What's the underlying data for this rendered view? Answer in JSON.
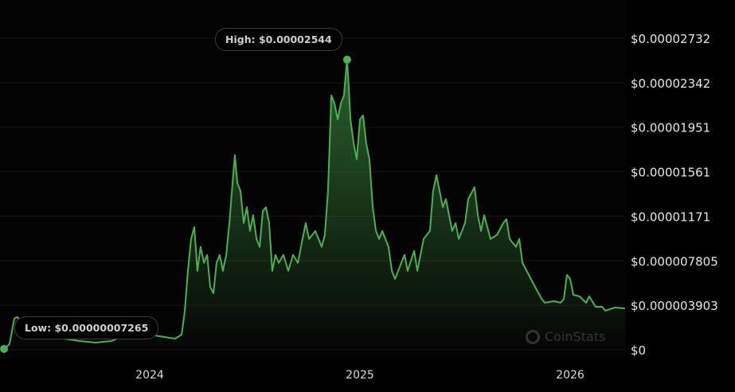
{
  "chart_data": {
    "type": "area",
    "title": "",
    "xlabel": "",
    "ylabel": "",
    "x_ticks": [
      "2024",
      "2025",
      "2026"
    ],
    "y_ticks": [
      "$0",
      "$0.000003903",
      "$0.000007805",
      "$0.00001171",
      "$0.00001561",
      "$0.00001951",
      "$0.00002342",
      "$0.00002732"
    ],
    "ylim": [
      0,
      2.732e-05
    ],
    "xlim": [
      2023.3,
      2026.26
    ],
    "grid": true,
    "line_color": "#4caf50",
    "high_label": "High: $0.00002544",
    "low_label": "Low: $0.00000007265",
    "watermark": "CoinStats",
    "series": [
      {
        "x": [
          2023.307,
          2023.333,
          2023.356,
          2023.371,
          2023.402,
          2023.477,
          2023.591,
          2023.667,
          2023.742,
          2023.818,
          2023.894,
          2023.97,
          2024.045,
          2024.121,
          2024.152,
          2024.167,
          2024.182,
          2024.197,
          2024.212,
          2024.227,
          2024.242,
          2024.258,
          2024.273,
          2024.288,
          2024.303,
          2024.318,
          2024.333,
          2024.348,
          2024.364,
          2024.379,
          2024.394,
          2024.405,
          2024.417,
          2024.432,
          2024.447,
          2024.462,
          2024.477,
          2024.492,
          2024.508,
          2024.523,
          2024.538,
          2024.553,
          2024.568,
          2024.583,
          2024.598,
          2024.614,
          2024.636,
          2024.659,
          2024.682,
          2024.705,
          2024.727,
          2024.742,
          2024.758,
          2024.788,
          2024.818,
          2024.833,
          2024.848,
          2024.864,
          2024.879,
          2024.894,
          2024.909,
          2024.924,
          2024.932,
          2024.939,
          2024.947,
          2024.955,
          2024.97,
          2024.985,
          2025.0,
          2025.015,
          2025.03,
          2025.045,
          2025.061,
          2025.076,
          2025.091,
          2025.106,
          2025.136,
          2025.152,
          2025.167,
          2025.197,
          2025.212,
          2025.227,
          2025.258,
          2025.273,
          2025.303,
          2025.333,
          2025.348,
          2025.364,
          2025.379,
          2025.394,
          2025.409,
          2025.424,
          2025.439,
          2025.455,
          2025.47,
          2025.5,
          2025.515,
          2025.545,
          2025.561,
          2025.576,
          2025.591,
          2025.621,
          2025.652,
          2025.682,
          2025.697,
          2025.712,
          2025.742,
          2025.758,
          2025.773,
          2025.803,
          2025.833,
          2025.864,
          2025.879,
          2025.924,
          2025.955,
          2025.97,
          2025.985,
          2026.0,
          2026.015,
          2026.045,
          2026.076,
          2026.091,
          2026.121,
          2026.152,
          2026.167,
          2026.212,
          2026.261
        ],
        "y": [
          7.265e-08,
          4.9e-07,
          2.73e-06,
          2.87e-06,
          2.03e-06,
          1.33e-06,
          9.8e-07,
          7.7e-07,
          6.3e-07,
          7.7e-07,
          1.33e-06,
          1.47e-06,
          1.19e-06,
          9.8e-07,
          1.33e-06,
          3.43e-06,
          6.92e-06,
          9.72e-06,
          1.076e-05,
          6.92e-06,
          9.02e-06,
          7.62e-06,
          8.32e-06,
          5.52e-06,
          4.96e-06,
          7.62e-06,
          8.32e-06,
          6.92e-06,
          8.32e-06,
          1.111e-05,
          1.461e-05,
          1.706e-05,
          1.461e-05,
          1.391e-05,
          1.111e-05,
          1.251e-05,
          1.042e-05,
          1.181e-05,
          9.72e-06,
          9.02e-06,
          1.216e-05,
          1.251e-05,
          1.111e-05,
          6.92e-06,
          8.32e-06,
          7.62e-06,
          8.32e-06,
          6.92e-06,
          8.32e-06,
          7.62e-06,
          9.72e-06,
          1.111e-05,
          9.72e-06,
          1.042e-05,
          9.02e-06,
          1.007e-05,
          1.391e-05,
          2.23e-05,
          2.16e-05,
          2.02e-05,
          2.16e-05,
          2.23e-05,
          2.405e-05,
          2.544e-05,
          2.3e-05,
          2.02e-05,
          1.81e-05,
          1.671e-05,
          2.02e-05,
          2.055e-05,
          1.81e-05,
          1.671e-05,
          1.251e-05,
          1.042e-05,
          9.72e-06,
          1.042e-05,
          9.02e-06,
          6.92e-06,
          6.22e-06,
          7.62e-06,
          8.32e-06,
          6.92e-06,
          8.67e-06,
          6.92e-06,
          9.72e-06,
          1.042e-05,
          1.391e-05,
          1.531e-05,
          1.391e-05,
          1.251e-05,
          1.321e-05,
          1.181e-05,
          1.042e-05,
          1.111e-05,
          9.72e-06,
          1.111e-05,
          1.321e-05,
          1.426e-05,
          1.181e-05,
          1.042e-05,
          1.181e-05,
          9.72e-06,
          1.007e-05,
          1.111e-05,
          1.146e-05,
          9.72e-06,
          9.02e-06,
          9.72e-06,
          7.62e-06,
          6.57e-06,
          5.52e-06,
          4.47e-06,
          4.12e-06,
          4.26e-06,
          4.12e-06,
          4.47e-06,
          6.57e-06,
          6.22e-06,
          4.82e-06,
          4.68e-06,
          4.12e-06,
          4.68e-06,
          3.77e-06,
          3.77e-06,
          3.43e-06,
          3.7e-06,
          3.63e-06
        ]
      }
    ]
  }
}
